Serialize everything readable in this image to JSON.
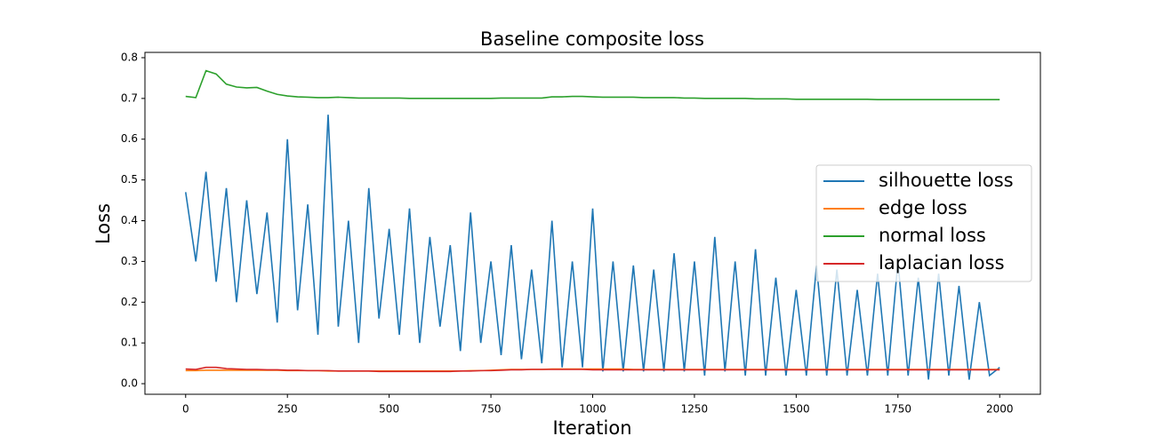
{
  "chart_data": {
    "type": "line",
    "title": "Baseline composite loss",
    "x_label": "Iteration",
    "y_label": "Loss",
    "x": [
      0,
      25,
      50,
      75,
      100,
      125,
      150,
      175,
      200,
      225,
      250,
      275,
      300,
      325,
      350,
      375,
      400,
      425,
      450,
      475,
      500,
      525,
      550,
      575,
      600,
      625,
      650,
      675,
      700,
      725,
      750,
      775,
      800,
      825,
      850,
      875,
      900,
      925,
      950,
      975,
      1000,
      1025,
      1050,
      1075,
      1100,
      1125,
      1150,
      1175,
      1200,
      1225,
      1250,
      1275,
      1300,
      1325,
      1350,
      1375,
      1400,
      1425,
      1450,
      1475,
      1500,
      1525,
      1550,
      1575,
      1600,
      1625,
      1650,
      1675,
      1700,
      1725,
      1750,
      1775,
      1800,
      1825,
      1850,
      1875,
      1900,
      1925,
      1950,
      1975,
      2000
    ],
    "series": [
      {
        "name": "silhouette loss",
        "color": "#1f77b4",
        "values": [
          0.47,
          0.3,
          0.52,
          0.25,
          0.48,
          0.2,
          0.45,
          0.22,
          0.42,
          0.15,
          0.6,
          0.18,
          0.44,
          0.12,
          0.66,
          0.14,
          0.4,
          0.1,
          0.48,
          0.16,
          0.38,
          0.12,
          0.43,
          0.1,
          0.36,
          0.14,
          0.34,
          0.08,
          0.42,
          0.1,
          0.3,
          0.07,
          0.34,
          0.06,
          0.28,
          0.05,
          0.4,
          0.04,
          0.3,
          0.04,
          0.43,
          0.03,
          0.3,
          0.03,
          0.29,
          0.03,
          0.28,
          0.03,
          0.32,
          0.03,
          0.3,
          0.02,
          0.36,
          0.03,
          0.3,
          0.02,
          0.33,
          0.02,
          0.26,
          0.02,
          0.23,
          0.02,
          0.29,
          0.02,
          0.28,
          0.02,
          0.23,
          0.02,
          0.27,
          0.02,
          0.3,
          0.02,
          0.26,
          0.01,
          0.27,
          0.02,
          0.24,
          0.01,
          0.2,
          0.02,
          0.04
        ]
      },
      {
        "name": "edge loss",
        "color": "#ff7f0e",
        "values": [
          0.032,
          0.032,
          0.033,
          0.033,
          0.033,
          0.033,
          0.033,
          0.033,
          0.033,
          0.033,
          0.032,
          0.032,
          0.032,
          0.032,
          0.031,
          0.031,
          0.031,
          0.031,
          0.031,
          0.031,
          0.031,
          0.031,
          0.031,
          0.031,
          0.031,
          0.031,
          0.031,
          0.031,
          0.032,
          0.032,
          0.033,
          0.034,
          0.035,
          0.035,
          0.035,
          0.035,
          0.036,
          0.036,
          0.036,
          0.036,
          0.036,
          0.036,
          0.036,
          0.036,
          0.035,
          0.035,
          0.035,
          0.035,
          0.035,
          0.035,
          0.035,
          0.035,
          0.035,
          0.035,
          0.035,
          0.035,
          0.035,
          0.035,
          0.035,
          0.035,
          0.035,
          0.035,
          0.035,
          0.035,
          0.035,
          0.035,
          0.035,
          0.035,
          0.035,
          0.035,
          0.035,
          0.035,
          0.035,
          0.035,
          0.035,
          0.035,
          0.035,
          0.035,
          0.035,
          0.035,
          0.035
        ]
      },
      {
        "name": "normal loss",
        "color": "#2ca02c",
        "values": [
          0.705,
          0.702,
          0.768,
          0.76,
          0.735,
          0.728,
          0.726,
          0.727,
          0.718,
          0.71,
          0.706,
          0.704,
          0.703,
          0.702,
          0.702,
          0.703,
          0.702,
          0.701,
          0.701,
          0.701,
          0.701,
          0.701,
          0.7,
          0.7,
          0.7,
          0.7,
          0.7,
          0.7,
          0.7,
          0.7,
          0.7,
          0.701,
          0.701,
          0.701,
          0.701,
          0.701,
          0.704,
          0.704,
          0.705,
          0.705,
          0.704,
          0.703,
          0.703,
          0.703,
          0.703,
          0.702,
          0.702,
          0.702,
          0.702,
          0.701,
          0.701,
          0.7,
          0.7,
          0.7,
          0.7,
          0.7,
          0.699,
          0.699,
          0.699,
          0.699,
          0.698,
          0.698,
          0.698,
          0.698,
          0.698,
          0.698,
          0.698,
          0.698,
          0.697,
          0.697,
          0.697,
          0.697,
          0.697,
          0.697,
          0.697,
          0.697,
          0.697,
          0.697,
          0.697,
          0.697,
          0.697
        ]
      },
      {
        "name": "laplacian loss",
        "color": "#d62728",
        "values": [
          0.036,
          0.035,
          0.04,
          0.04,
          0.037,
          0.036,
          0.035,
          0.035,
          0.034,
          0.034,
          0.033,
          0.033,
          0.032,
          0.032,
          0.032,
          0.031,
          0.031,
          0.031,
          0.031,
          0.03,
          0.03,
          0.03,
          0.03,
          0.03,
          0.03,
          0.03,
          0.03,
          0.031,
          0.031,
          0.032,
          0.032,
          0.033,
          0.034,
          0.034,
          0.035,
          0.035,
          0.035,
          0.035,
          0.035,
          0.035,
          0.034,
          0.034,
          0.034,
          0.034,
          0.034,
          0.034,
          0.034,
          0.034,
          0.034,
          0.034,
          0.034,
          0.034,
          0.034,
          0.034,
          0.034,
          0.034,
          0.034,
          0.034,
          0.034,
          0.034,
          0.034,
          0.034,
          0.034,
          0.034,
          0.034,
          0.034,
          0.034,
          0.034,
          0.034,
          0.034,
          0.034,
          0.034,
          0.034,
          0.034,
          0.034,
          0.034,
          0.034,
          0.034,
          0.034,
          0.034,
          0.034
        ]
      }
    ],
    "xlim": [
      -100,
      2100
    ],
    "ylim": [
      -0.026,
      0.813
    ],
    "xticks": [
      0,
      250,
      500,
      750,
      1000,
      1250,
      1500,
      1750,
      2000
    ],
    "yticks": [
      {
        "value": 0,
        "label": "0.0"
      },
      0.1,
      0.2,
      0.3,
      0.4,
      0.5,
      0.6,
      0.7,
      0.8
    ],
    "legend": "center right"
  }
}
